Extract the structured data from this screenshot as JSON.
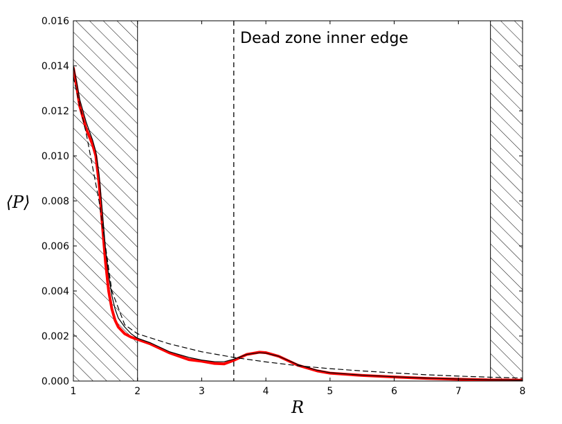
{
  "chart_data": {
    "type": "line",
    "xlabel": "R",
    "ylabel": "⟨P⟩",
    "xlim": [
      1,
      8
    ],
    "ylim": [
      0,
      0.016
    ],
    "x_ticks": [
      "1",
      "2",
      "3",
      "4",
      "5",
      "6",
      "7",
      "8"
    ],
    "y_ticks": [
      "0.000",
      "0.002",
      "0.004",
      "0.006",
      "0.008",
      "0.010",
      "0.012",
      "0.014",
      "0.016"
    ],
    "grid": false,
    "hatched_regions": [
      [
        1,
        2
      ],
      [
        7.5,
        8
      ]
    ],
    "vertical_line": {
      "x": 3.5,
      "style": "dashed",
      "color": "#000000"
    },
    "annotation": {
      "text": "Dead zone inner edge",
      "x": 3.6,
      "y": 0.0151
    },
    "series": [
      {
        "color": "#ff0000",
        "style": "solid-thick",
        "x": [
          1.0,
          1.05,
          1.1,
          1.2,
          1.3,
          1.35,
          1.4,
          1.45,
          1.5,
          1.55,
          1.6,
          1.65,
          1.7,
          1.8,
          1.9,
          2.0,
          2.2,
          2.5,
          2.8,
          3.0,
          3.2,
          3.35,
          3.5,
          3.7,
          3.9,
          4.0,
          4.2,
          4.5,
          4.8,
          5.0,
          5.5,
          6.0,
          6.5,
          7.0,
          7.5,
          8.0
        ],
        "y": [
          0.0139,
          0.0131,
          0.0122,
          0.0112,
          0.0105,
          0.01,
          0.0088,
          0.007,
          0.0053,
          0.004,
          0.0032,
          0.0027,
          0.0024,
          0.0021,
          0.00195,
          0.00185,
          0.00165,
          0.00125,
          0.00095,
          0.00088,
          0.00078,
          0.00076,
          0.00092,
          0.00118,
          0.00128,
          0.00126,
          0.0011,
          0.0007,
          0.00045,
          0.00035,
          0.00025,
          0.00018,
          0.00012,
          8e-05,
          5e-05,
          4e-05
        ]
      },
      {
        "color": "#000000",
        "style": "solid-thin",
        "x": [
          1.0,
          1.05,
          1.1,
          1.2,
          1.3,
          1.35,
          1.4,
          1.45,
          1.5,
          1.55,
          1.6,
          1.65,
          1.7,
          1.8,
          1.9,
          2.0,
          2.2,
          2.5,
          2.8,
          3.0,
          3.2,
          3.35,
          3.5,
          3.7,
          3.9,
          4.0,
          4.2,
          4.5,
          4.8,
          5.0,
          5.5,
          6.0,
          6.5,
          7.0,
          7.5,
          8.0
        ],
        "y": [
          0.014,
          0.0133,
          0.0125,
          0.0115,
          0.0107,
          0.0102,
          0.0092,
          0.0076,
          0.0059,
          0.0047,
          0.0038,
          0.0032,
          0.0028,
          0.0024,
          0.0021,
          0.0019,
          0.0017,
          0.0013,
          0.00105,
          0.00093,
          0.00086,
          0.00086,
          0.00097,
          0.00118,
          0.00126,
          0.00124,
          0.0011,
          0.00073,
          0.00048,
          0.00037,
          0.00026,
          0.00019,
          0.00013,
          9e-05,
          6e-05,
          4e-05
        ]
      },
      {
        "color": "#000000",
        "style": "dashed-thin",
        "x": [
          1.0,
          1.2,
          1.4,
          1.6,
          1.8,
          2.0,
          2.5,
          3.0,
          3.5,
          4.0,
          4.5,
          5.0,
          5.5,
          6.0,
          6.5,
          7.0,
          7.5,
          8.0
        ],
        "y": [
          0.0135,
          0.011,
          0.008,
          0.004,
          0.0025,
          0.0021,
          0.00165,
          0.0013,
          0.00105,
          0.00085,
          0.00068,
          0.00055,
          0.00045,
          0.00036,
          0.00028,
          0.00022,
          0.00017,
          0.00013
        ]
      }
    ]
  }
}
